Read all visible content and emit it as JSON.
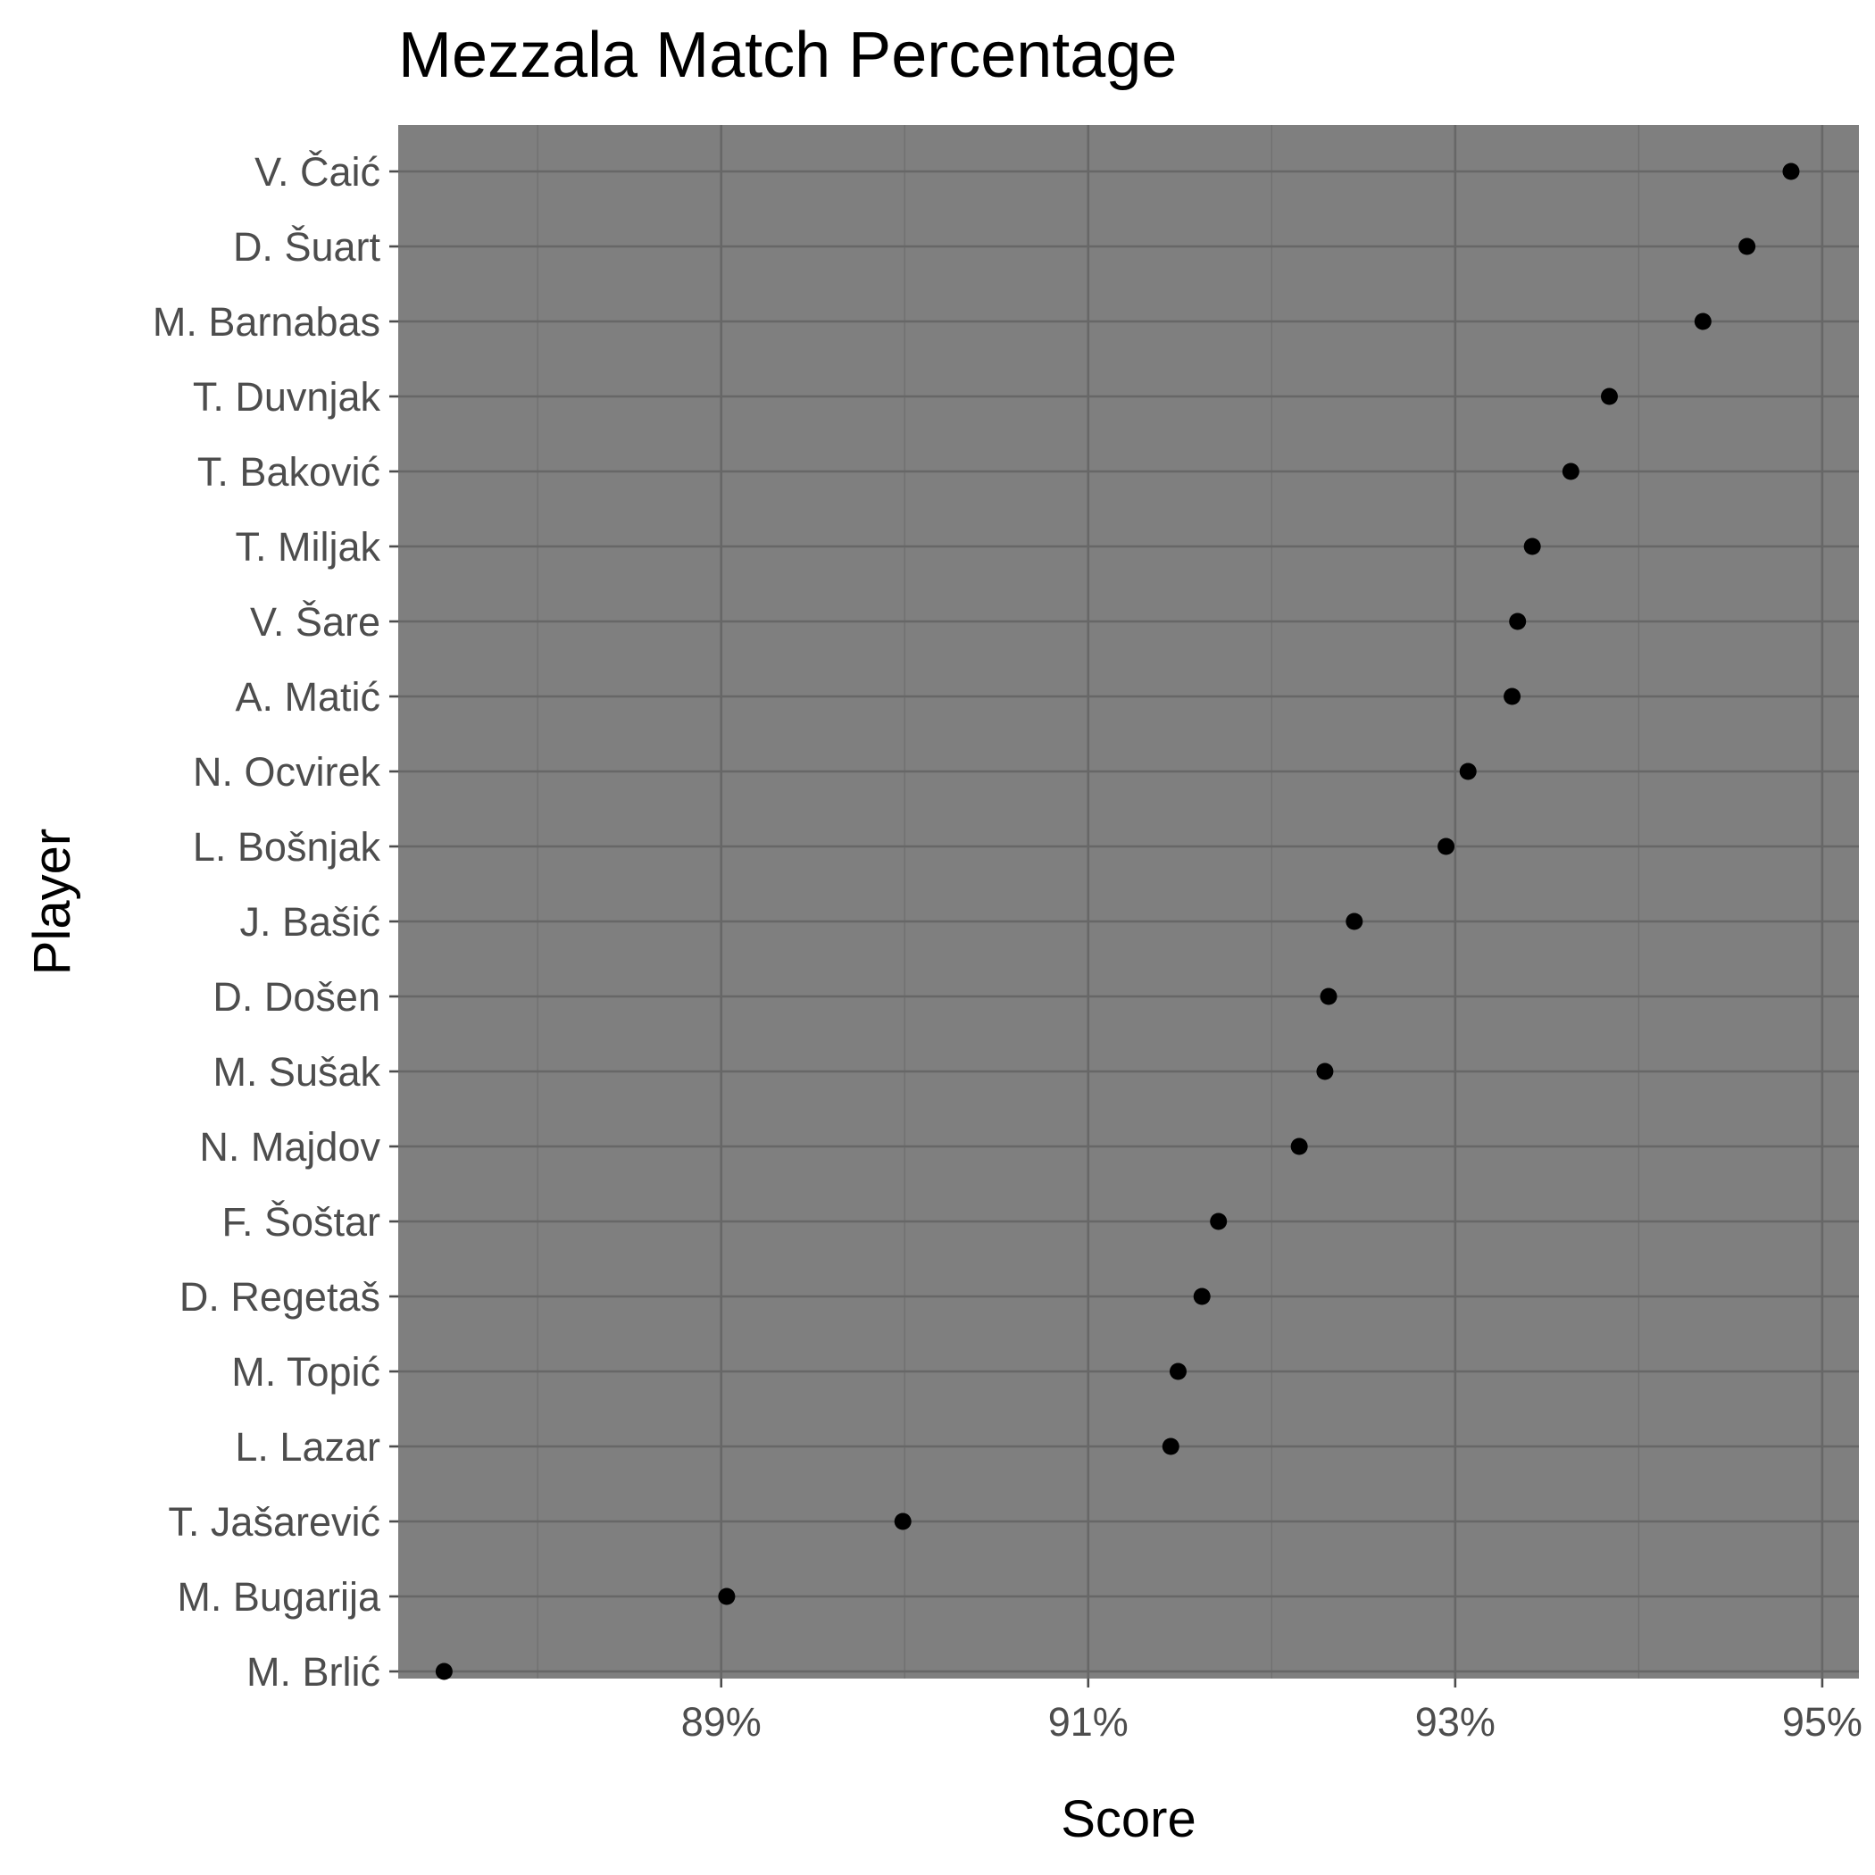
{
  "chart_data": {
    "type": "scatter",
    "title": "Mezzala  Match Percentage",
    "xlabel": "Score",
    "ylabel": "Player",
    "xlim": [
      87.24,
      95.2
    ],
    "x_ticks": [
      89,
      91,
      93,
      95
    ],
    "x_tick_labels": [
      "89%",
      "91%",
      "93%",
      "95%"
    ],
    "x_minor_ticks": [
      88,
      90,
      92,
      94
    ],
    "panel_color": "#7f7f7f",
    "point_color": "#000000",
    "grid": true,
    "legend": "none",
    "players": [
      "V. Čaić",
      "D. Šuart",
      "M. Barnabas",
      "T. Duvnjak",
      "T. Baković",
      "T. Miljak",
      "V. Šare",
      "A. Matić",
      "N. Ocvirek",
      "L. Bošnjak",
      "J. Bašić",
      "D. Došen",
      "M. Sušak",
      "N. Majdov",
      "F. Šoštar",
      "D. Regetaš",
      "M. Topić",
      "L. Lazar",
      "T. Jašarević",
      "M. Bugarija",
      "M. Brlić"
    ],
    "values": [
      94.83,
      94.59,
      94.35,
      93.84,
      93.63,
      93.42,
      93.34,
      93.31,
      93.07,
      92.95,
      92.45,
      92.31,
      92.29,
      92.15,
      91.71,
      91.62,
      91.49,
      91.45,
      89.99,
      89.03,
      87.49
    ]
  }
}
